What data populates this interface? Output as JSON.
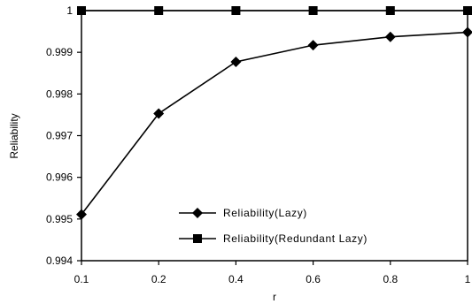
{
  "chart_data": {
    "type": "line",
    "categories": [
      "0.1",
      "0.2",
      "0.4",
      "0.6",
      "0.8",
      "1"
    ],
    "series": [
      {
        "name": "Reliability(Lazy)",
        "marker": "diamond",
        "values": [
          0.99511,
          0.99753,
          0.99877,
          0.99917,
          0.99937,
          0.99948
        ]
      },
      {
        "name": "Reliability(Redundant Lazy)",
        "marker": "square",
        "values": [
          1.0,
          1.0,
          1.0,
          1.0,
          1.0,
          1.0
        ]
      }
    ],
    "title": "",
    "xlabel": "r",
    "ylabel": "Reliability",
    "ylim": [
      0.994,
      1.0
    ],
    "yticks": [
      "0.994",
      "0.995",
      "0.996",
      "0.997",
      "0.998",
      "0.999",
      "1"
    ],
    "grid": false,
    "legend_position": "lower-right",
    "colors": {
      "line": "#000000",
      "background": "#ffffff"
    }
  }
}
